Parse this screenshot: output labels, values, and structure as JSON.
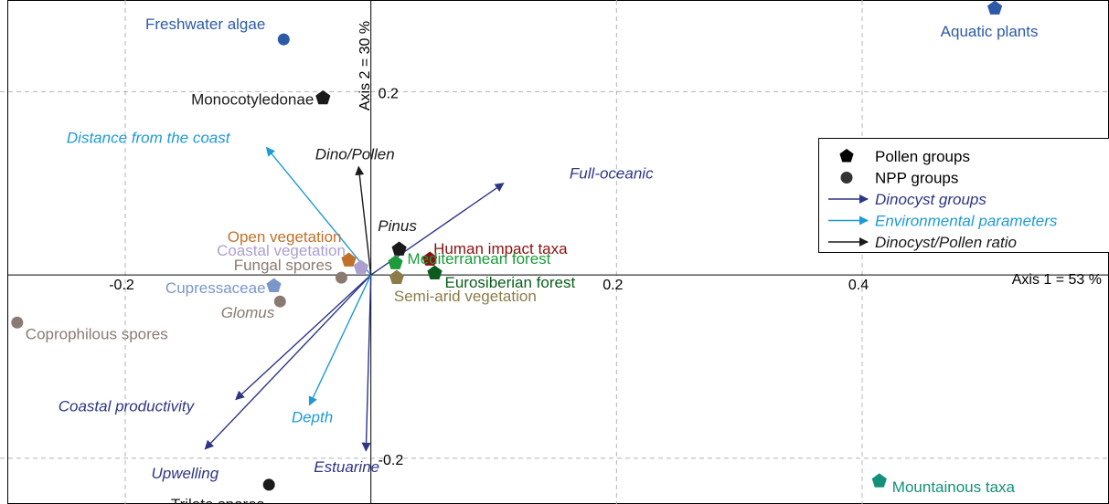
{
  "chart_data": {
    "type": "scatter",
    "title": "",
    "xlabel": "Axis 1 = 53 %",
    "ylabel": "Axis 2 = 30 %",
    "xlim": [
      -0.302,
      0.601
    ],
    "ylim": [
      -0.25,
      0.3
    ],
    "x_ticks": [
      {
        "value": -0.2,
        "label": "-0.2"
      },
      {
        "value": 0.2,
        "label": "0.2"
      },
      {
        "value": 0.4,
        "label": "0.4"
      }
    ],
    "y_ticks": [
      {
        "value": 0.2,
        "label": "0.2"
      },
      {
        "value": -0.2,
        "label": "-0.2"
      }
    ],
    "grid": true,
    "legend_position": "right",
    "colors": {
      "black": "#1a1a1a",
      "dinocyst": "#2e3585",
      "environment": "#1e9ad6",
      "water_blue": "#2d5aa6",
      "cupressaceae": "#7b96c8",
      "brown_grey": "#8a7a72",
      "orange": "#c0702a",
      "lavender": "#ab9fd0",
      "red": "#8b1010",
      "green": "#1b9b3a",
      "dark_green": "#0b5c1c",
      "olive": "#8c7c4a",
      "teal": "#13907a",
      "grid": "#b4b4b4"
    },
    "legend": [
      {
        "label": "Pollen groups",
        "symbol": "pentagon",
        "color": "#000000",
        "italic": false
      },
      {
        "label": "NPP groups",
        "symbol": "circle",
        "color": "#333333",
        "italic": false
      },
      {
        "label": "Dinocyst groups",
        "symbol": "arrow",
        "color": "#2e3585",
        "italic": true
      },
      {
        "label": "Environmental parameters",
        "symbol": "arrow",
        "color": "#1e9ad6",
        "italic": true
      },
      {
        "label": "Dinocyst/Pollen ratio",
        "symbol": "arrow",
        "color": "#1a1a1a",
        "italic": true
      }
    ],
    "series": [
      {
        "name": "Pollen groups",
        "points": [
          {
            "label": "Aquatic plants",
            "x": 0.508,
            "y": 0.291,
            "color": "#2d5aa6"
          },
          {
            "label": "Monocotyledonae",
            "x": -0.039,
            "y": 0.193,
            "color": "#1a1a1a"
          },
          {
            "label": "Pinus",
            "x": 0.023,
            "y": 0.028,
            "color": "#1a1a1a"
          },
          {
            "label": "Human impact taxa",
            "x": 0.048,
            "y": 0.017,
            "color": "#8b1010"
          },
          {
            "label": "Mediterranean forest",
            "x": 0.02,
            "y": 0.013,
            "color": "#1b9b3a"
          },
          {
            "label": "Eurosiberian forest",
            "x": 0.052,
            "y": 0.002,
            "color": "#0b5c1c"
          },
          {
            "label": "Semi-arid vegetation",
            "x": 0.021,
            "y": -0.003,
            "color": "#8c7c4a"
          },
          {
            "label": "Open vegetation",
            "x": -0.018,
            "y": 0.016,
            "color": "#c0702a"
          },
          {
            "label": "Coastal vegetation",
            "x": -0.008,
            "y": 0.008,
            "color": "#ab9fd0"
          },
          {
            "label": "Cupressaceae",
            "x": -0.079,
            "y": -0.012,
            "color": "#7b96c8"
          },
          {
            "label": "Mountainous taxa",
            "x": 0.414,
            "y": -0.225,
            "color": "#13907a"
          }
        ]
      },
      {
        "name": "NPP groups",
        "points": [
          {
            "label": "Freshwater algae",
            "x": -0.071,
            "y": 0.257,
            "color": "#2d5aa6"
          },
          {
            "label": "Fungal spores",
            "x": -0.024,
            "y": -0.003,
            "color": "#8a7a72"
          },
          {
            "label": "Glomus",
            "x": -0.074,
            "y": -0.029,
            "color": "#8a7a72"
          },
          {
            "label": "Coprophilous spores",
            "x": -0.288,
            "y": -0.052,
            "color": "#8a7a72"
          },
          {
            "label": "Trilete spores",
            "x": -0.083,
            "y": -0.229,
            "color": "#1a1a1a"
          }
        ]
      },
      {
        "name": "Dinocyst groups",
        "arrows": [
          {
            "label": "Full-oceanic",
            "x": 0.108,
            "y": 0.1
          },
          {
            "label": "Coastal productivity",
            "x": -0.11,
            "y": -0.136
          },
          {
            "label": "Upwelling",
            "x": -0.135,
            "y": -0.19
          },
          {
            "label": "Estuarine",
            "x": -0.004,
            "y": -0.192
          }
        ]
      },
      {
        "name": "Environmental parameters",
        "arrows": [
          {
            "label": "Distance from the coast",
            "x": -0.085,
            "y": 0.139
          },
          {
            "label": "Depth",
            "x": -0.05,
            "y": -0.142
          }
        ]
      },
      {
        "name": "Dinocyst/Pollen ratio",
        "arrows": [
          {
            "label": "Dino/Pollen",
            "x": -0.01,
            "y": 0.118
          }
        ]
      }
    ]
  }
}
